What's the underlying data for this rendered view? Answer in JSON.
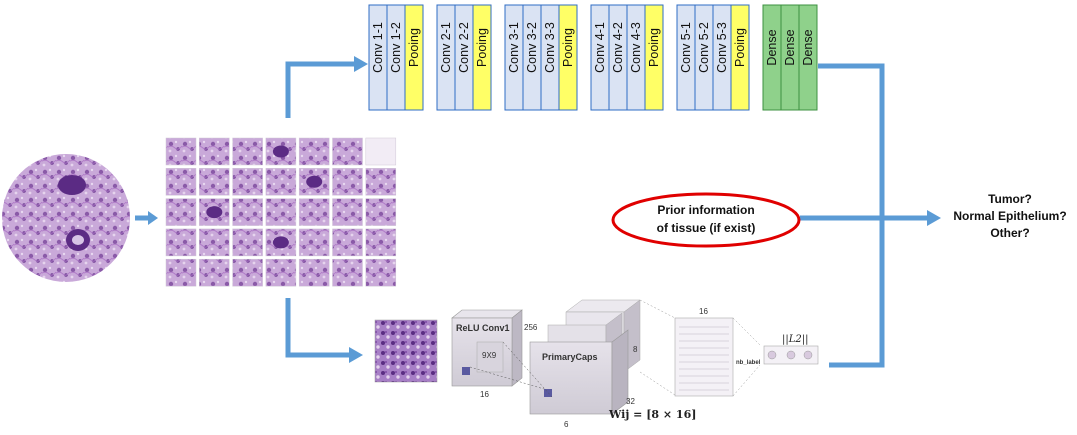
{
  "vgg": {
    "blocks": [
      {
        "layers": [
          "Conv 1-1",
          "Conv 1-2",
          "Pooing"
        ]
      },
      {
        "layers": [
          "Conv 2-1",
          "Conv 2-2",
          "Pooing"
        ]
      },
      {
        "layers": [
          "Conv 3-1",
          "Conv 3-2",
          "Conv 3-3",
          "Pooing"
        ]
      },
      {
        "layers": [
          "Conv 4-1",
          "Conv 4-2",
          "Conv 4-3",
          "Pooing"
        ]
      },
      {
        "layers": [
          "Conv 5-1",
          "Conv 5-2",
          "Conv 5-3",
          "Pooing"
        ]
      },
      {
        "layers": [
          "Dense",
          "Dense",
          "Dense"
        ]
      }
    ]
  },
  "prior": {
    "line1": "Prior information",
    "line2": "of tissue (if exist)"
  },
  "outputs": [
    "Tumor?",
    "Normal Epithelium?",
    "Other?"
  ],
  "capsnet": {
    "relu_label": "ReLU Conv1",
    "relu_channels": "256",
    "kernel": "9X9",
    "relu_size": "16",
    "primary_label": "PrimaryCaps",
    "primary_dim": "8",
    "primary_depth": "32",
    "primary_size": "6",
    "digit_dim": "16",
    "nb_label": "nb_label",
    "norm_label": "||L2||",
    "weight_label": "Wij = [8 × 16]"
  },
  "colors": {
    "conv": "#dae3f3",
    "conv_border": "#2f6cc4",
    "pool": "#ffff66",
    "dense": "#8fd18b",
    "dense_border": "#3d9140",
    "arrow": "#5b9bd5",
    "ellipse": "#e00000"
  }
}
